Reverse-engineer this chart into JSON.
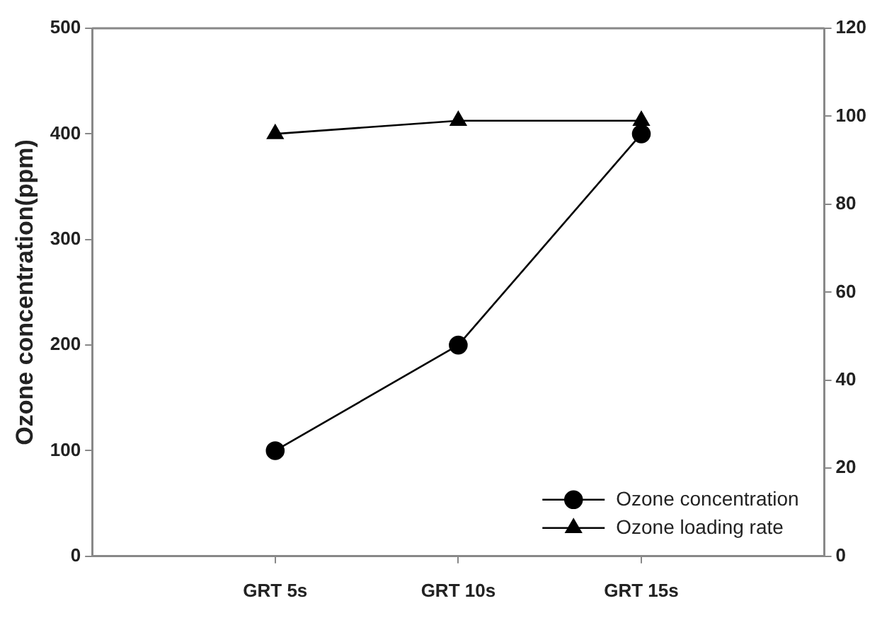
{
  "chart_data": {
    "type": "line",
    "ylabel": "Ozone concentration(ppm)",
    "categories": [
      null,
      "GRT 5s",
      "GRT 10s",
      "GRT 15s",
      null
    ],
    "series": [
      {
        "name": "Ozone concentration",
        "color": "#000000",
        "values": [
          null,
          100,
          200,
          400,
          null
        ],
        "marker": "circle"
      },
      {
        "name": "Ozone loading rate",
        "color": "#000000",
        "values": [
          null,
          96,
          99,
          99,
          null
        ],
        "marker": "triangle",
        "axis": "y2"
      }
    ],
    "ylim": [
      0,
      500
    ],
    "yticks": [
      0,
      100,
      200,
      300,
      400,
      500
    ],
    "y2lim": [
      0,
      120
    ],
    "y2ticks": [
      0,
      20,
      40,
      60,
      80,
      100,
      120
    ],
    "grid": false,
    "legend": "bottom right"
  }
}
